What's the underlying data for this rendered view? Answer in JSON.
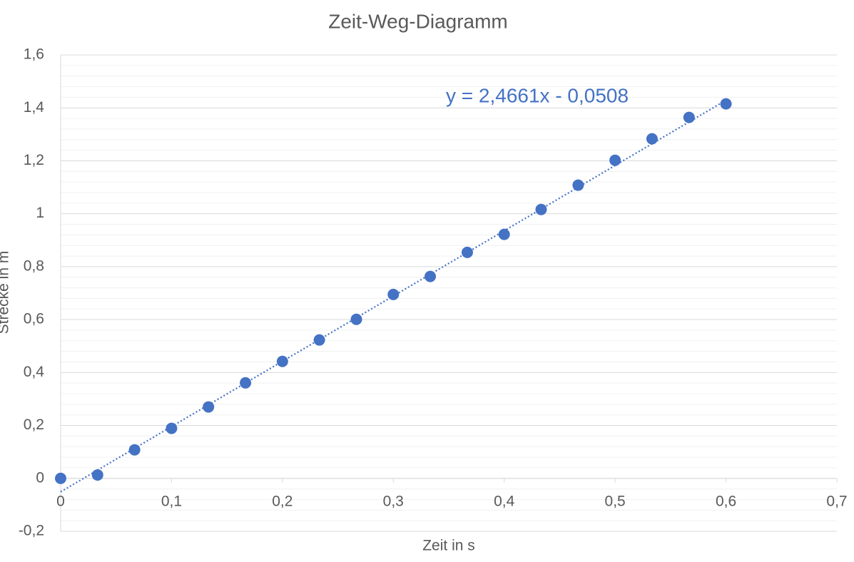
{
  "chart_data": {
    "type": "scatter",
    "title": "Zeit-Weg-Diagramm",
    "x_label": "Zeit in s",
    "y_label": "Strecke in m",
    "x": [
      0,
      0.0333,
      0.0667,
      0.1,
      0.1333,
      0.1667,
      0.2,
      0.2333,
      0.2667,
      0.3,
      0.3333,
      0.3667,
      0.4,
      0.4333,
      0.4667,
      0.5,
      0.5333,
      0.5667,
      0.6
    ],
    "values": [
      0,
      0.013,
      0.108,
      0.189,
      0.27,
      0.361,
      0.442,
      0.523,
      0.601,
      0.695,
      0.763,
      0.854,
      0.922,
      1.016,
      1.108,
      1.202,
      1.283,
      1.364,
      1.415
    ],
    "color": "#4472c4",
    "xlim": [
      0,
      0.7
    ],
    "xticks": [
      0,
      {
        "value": 0.1,
        "label": "0,1"
      },
      {
        "value": 0.2,
        "label": "0,2"
      },
      {
        "value": 0.3,
        "label": "0,3"
      },
      {
        "value": 0.4,
        "label": "0,4"
      },
      {
        "value": 0.5,
        "label": "0,5"
      },
      {
        "value": 0.6,
        "label": "0,6"
      },
      {
        "value": 0.7,
        "label": "0,7"
      }
    ],
    "ylim": [
      -0.2,
      1.6
    ],
    "yticks": [
      {
        "value": -0.2,
        "label": "-0,2"
      },
      0,
      {
        "value": 0.2,
        "label": "0,2"
      },
      {
        "value": 0.4,
        "label": "0,4"
      },
      {
        "value": 0.6,
        "label": "0,6"
      },
      {
        "value": 0.8,
        "label": "0,8"
      },
      1,
      {
        "value": 1.2,
        "label": "1,2"
      },
      {
        "value": 1.4,
        "label": "1,4"
      },
      {
        "value": 1.6,
        "label": "1,6"
      }
    ],
    "grid": true,
    "trendline": {
      "label": "y = 2,4661x - 0,0508",
      "slope": 2.4661,
      "intercept": -0.0508
    }
  }
}
